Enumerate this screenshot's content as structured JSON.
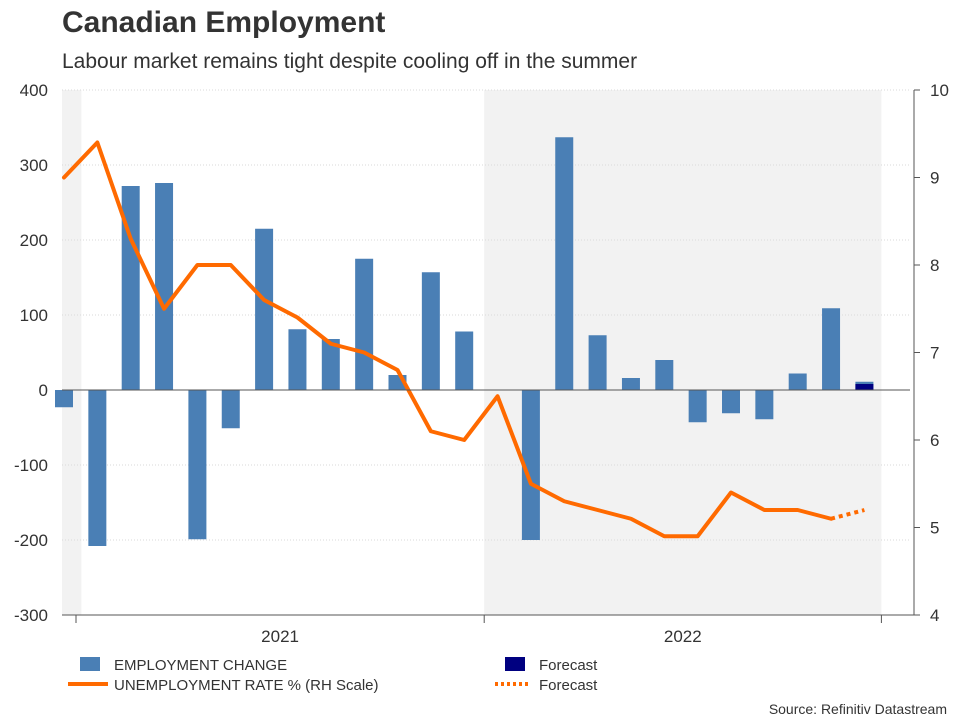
{
  "header": {
    "title": "Canadian Employment",
    "subtitle": "Labour market remains tight despite cooling off in the summer"
  },
  "source": "Source: Refinitiv Datastream",
  "colors": {
    "bars": "#4a7fb5",
    "forecast_bar": "#000080",
    "line": "#ff6a00",
    "shade": "#f2f2f2",
    "grid": "#d9d9d9"
  },
  "chart_data": {
    "type": "bar",
    "months": [
      "2020-12",
      "2021-01",
      "2021-02",
      "2021-03",
      "2021-04",
      "2021-05",
      "2021-06",
      "2021-07",
      "2021-08",
      "2021-09",
      "2021-10",
      "2021-11",
      "2021-12",
      "2022-01",
      "2022-02",
      "2022-03",
      "2022-04",
      "2022-05",
      "2022-06",
      "2022-07",
      "2022-08",
      "2022-09",
      "2022-10",
      "2022-11",
      "2022-12"
    ],
    "x_tick_labels": [
      "2021",
      "2022"
    ],
    "shaded_years": [
      "2021",
      "2022"
    ],
    "left_axis": {
      "ticks": [
        400,
        300,
        200,
        100,
        0,
        -100,
        -200,
        -300
      ],
      "range": [
        -300,
        400
      ]
    },
    "right_axis": {
      "label": "",
      "ticks": [
        10,
        9,
        8,
        7,
        6,
        5,
        4
      ],
      "range": [
        4,
        10
      ]
    },
    "series": [
      {
        "name": "EMPLOYMENT CHANGE",
        "kind": "bar",
        "axis": "left",
        "values": [
          -23,
          -208,
          272,
          276,
          -199,
          -51,
          215,
          81,
          68,
          175,
          20,
          157,
          78,
          null,
          -200,
          337,
          73,
          16,
          40,
          -43,
          -31,
          -39,
          22,
          109,
          11
        ]
      },
      {
        "name": "Forecast",
        "kind": "bar",
        "axis": "left",
        "forecast_month": "2022-12",
        "value": 8
      },
      {
        "name": "UNEMPLOYMENT RATE % (RH Scale)",
        "kind": "line",
        "axis": "right",
        "values": [
          9.0,
          9.4,
          8.3,
          7.5,
          8.0,
          8.0,
          7.6,
          7.4,
          7.1,
          7.0,
          6.8,
          6.1,
          6.0,
          6.5,
          5.5,
          5.3,
          5.2,
          5.1,
          4.9,
          4.9,
          5.4,
          5.2,
          5.2,
          5.1,
          null
        ]
      },
      {
        "name": "Forecast",
        "kind": "line-dotted",
        "axis": "right",
        "values": [
          {
            "month": "2022-11",
            "value": 5.1
          },
          {
            "month": "2022-12",
            "value": 5.2
          }
        ]
      }
    ]
  }
}
